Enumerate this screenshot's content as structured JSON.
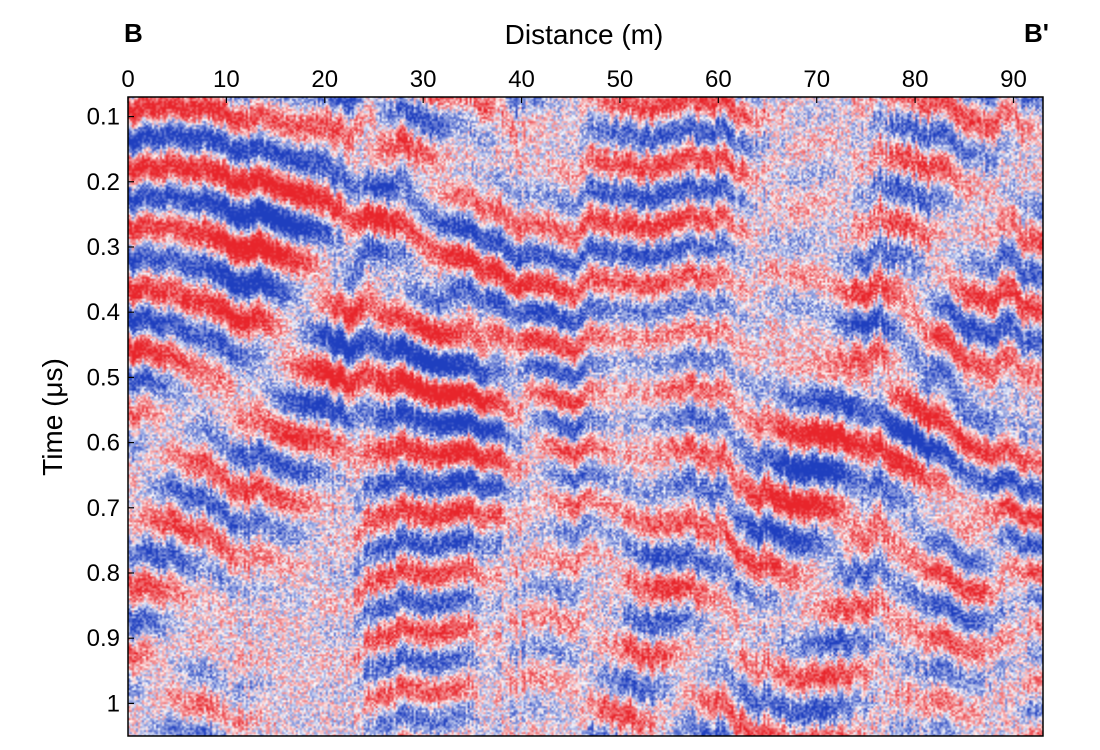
{
  "chart_data": {
    "type": "heatmap",
    "title": "",
    "xlabel": "Distance (m)",
    "ylabel": "Time (μs)",
    "xlim": [
      0,
      93
    ],
    "ylim": [
      0.07,
      1.05
    ],
    "x_ticks": [
      "0",
      "10",
      "20",
      "30",
      "40",
      "50",
      "60",
      "70",
      "80",
      "90"
    ],
    "y_ticks": [
      "0.1",
      "0.2",
      "0.3",
      "0.4",
      "0.5",
      "0.6",
      "0.7",
      "0.8",
      "0.9",
      "1"
    ],
    "x_axis_position": "top",
    "y_axis_inverted": true,
    "grid": false,
    "legend": "none",
    "corner_labels": {
      "left": "B",
      "right": "B'"
    },
    "colormap": {
      "negative": "#1f3fbf",
      "zero": "#ffffff",
      "positive": "#e8252b"
    },
    "description_of_values": "Ground-penetrating radar amplitude section: alternating red/blue reflection bands dipping downward from left to right, densely textured."
  }
}
